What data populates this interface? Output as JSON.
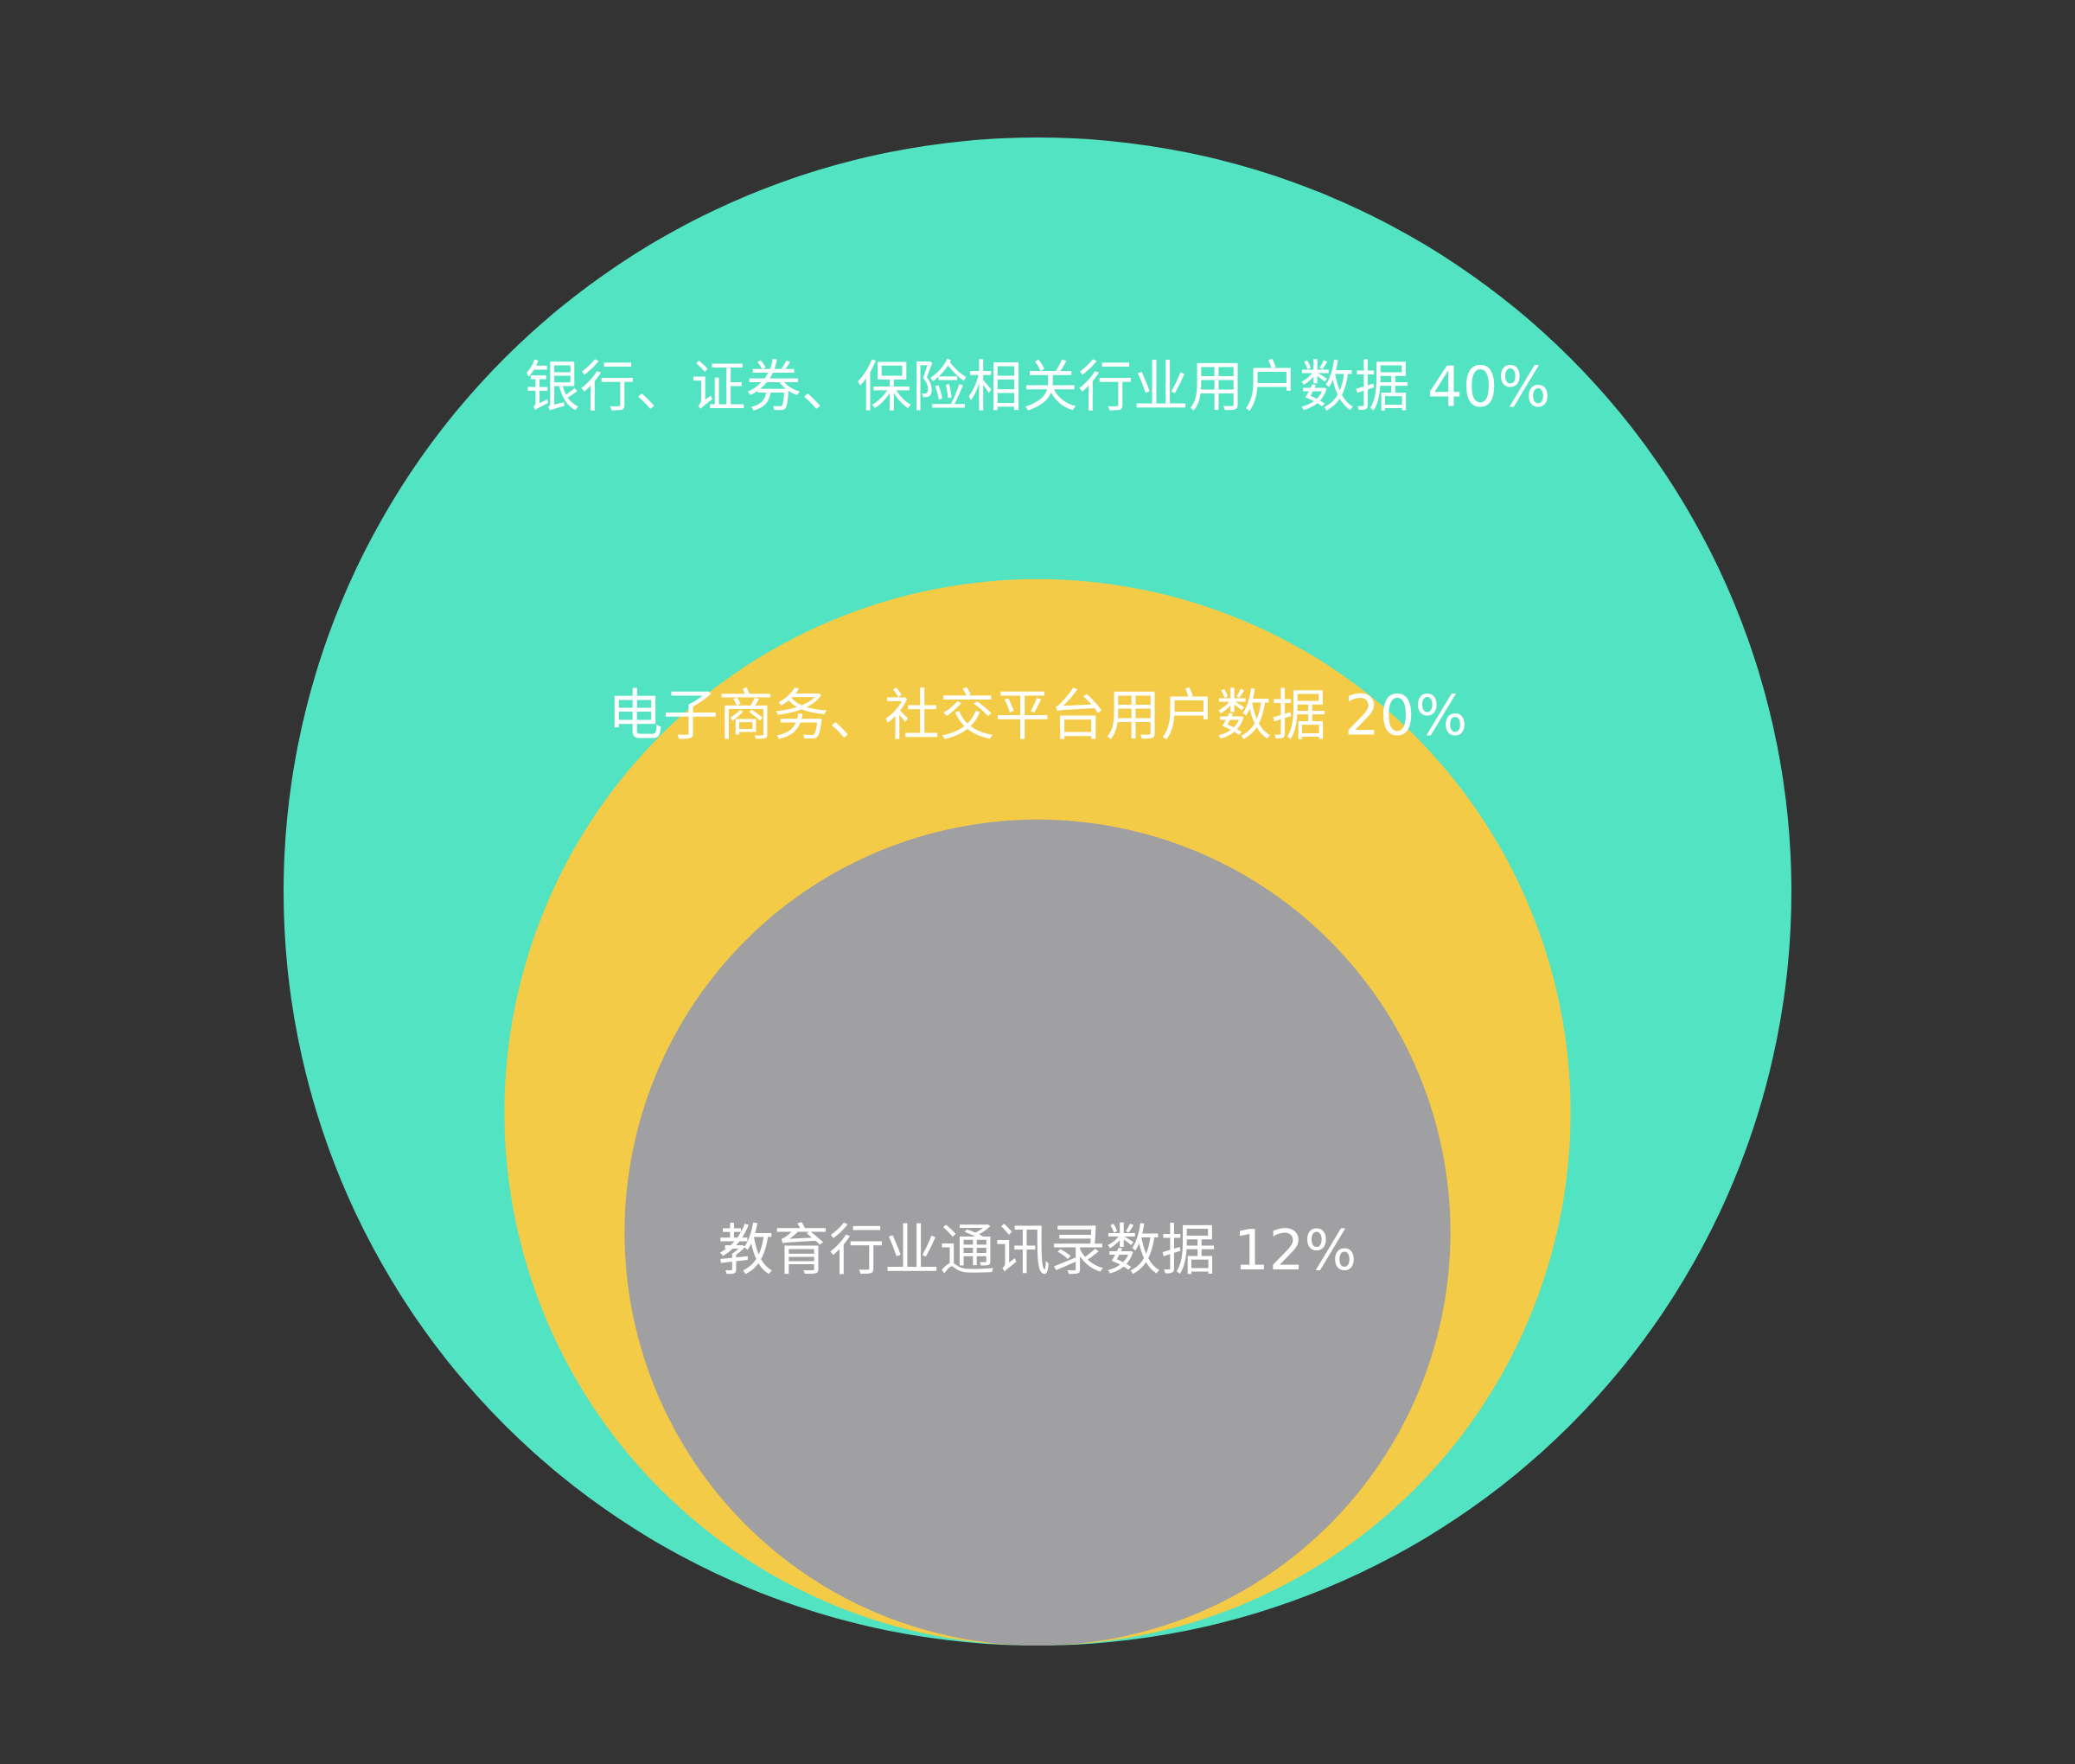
{
  "chart_data": {
    "type": "nested-circle",
    "background_color": "#333333",
    "legend": "none",
    "grid": false,
    "series": [
      {
        "label": "银行、证券、保险相关行业用户数据 40%",
        "value": 40,
        "color": "#52E3C2"
      },
      {
        "label": "电子商务、社交平台用户数据 20%",
        "value": 20,
        "color": "#F4CB47"
      },
      {
        "label": "教育行业通讯录数据 12%",
        "value": 12,
        "color": "#A0A0A2"
      }
    ]
  }
}
